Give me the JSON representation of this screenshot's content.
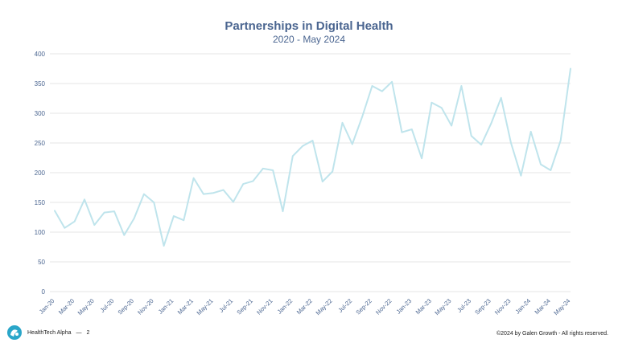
{
  "footer": {
    "brand": "HealthTech Alpha",
    "separator": "—",
    "page_number": "2",
    "copyright": "©2024 by Galen Growth - All rights reserved."
  },
  "colors": {
    "title": "#4a6590",
    "line": "#bfe4ec",
    "grid": "#e4e4e4",
    "axis_text": "#4a6590",
    "logo": "#2aa6c9"
  },
  "chart_data": {
    "type": "line",
    "title": "Partnerships in Digital Health",
    "subtitle": "2020 - May 2024",
    "xlabel": "",
    "ylabel": "",
    "ylim": [
      0,
      400
    ],
    "yticks": [
      0,
      50,
      100,
      150,
      200,
      250,
      300,
      350,
      400
    ],
    "grid": true,
    "legend": "none",
    "x": [
      "Jan-20",
      "Feb-20",
      "Mar-20",
      "Apr-20",
      "May-20",
      "Jun-20",
      "Jul-20",
      "Aug-20",
      "Sep-20",
      "Oct-20",
      "Nov-20",
      "Dec-20",
      "Jan-21",
      "Feb-21",
      "Mar-21",
      "Apr-21",
      "May-21",
      "Jun-21",
      "Jul-21",
      "Aug-21",
      "Sep-21",
      "Oct-21",
      "Nov-21",
      "Dec-21",
      "Jan-22",
      "Feb-22",
      "Mar-22",
      "Apr-22",
      "May-22",
      "Jun-22",
      "Jul-22",
      "Aug-22",
      "Sep-22",
      "Oct-22",
      "Nov-22",
      "Dec-22",
      "Jan-23",
      "Feb-23",
      "Mar-23",
      "Apr-23",
      "May-23",
      "Jun-23",
      "Jul-23",
      "Aug-23",
      "Sep-23",
      "Oct-23",
      "Nov-23",
      "Dec-23",
      "Jan-24",
      "Feb-24",
      "Mar-24",
      "Apr-24",
      "May-24"
    ],
    "xtick_labels": [
      "Jan-20",
      "Mar-20",
      "May-20",
      "Jul-20",
      "Sep-20",
      "Nov-20",
      "Jan-21",
      "Mar-21",
      "May-21",
      "Jul-21",
      "Sep-21",
      "Nov-21",
      "Jan-22",
      "Mar-22",
      "May-22",
      "Jul-22",
      "Sep-22",
      "Nov-22",
      "Jan-23",
      "Mar-23",
      "May-23",
      "Jul-23",
      "Sep-23",
      "Nov-23",
      "Jan-24",
      "Mar-24",
      "May-24"
    ],
    "series": [
      {
        "values": [
          136,
          107,
          118,
          155,
          112,
          133,
          135,
          95,
          123,
          164,
          150,
          77,
          127,
          120,
          191,
          164,
          166,
          171,
          151,
          181,
          186,
          207,
          204,
          135,
          228,
          245,
          254,
          185,
          202,
          284,
          248,
          294,
          346,
          337,
          353,
          268,
          273,
          224,
          318,
          309,
          279,
          346,
          262,
          247,
          283,
          326,
          250,
          195,
          269,
          214,
          204,
          254,
          375
        ]
      }
    ]
  }
}
